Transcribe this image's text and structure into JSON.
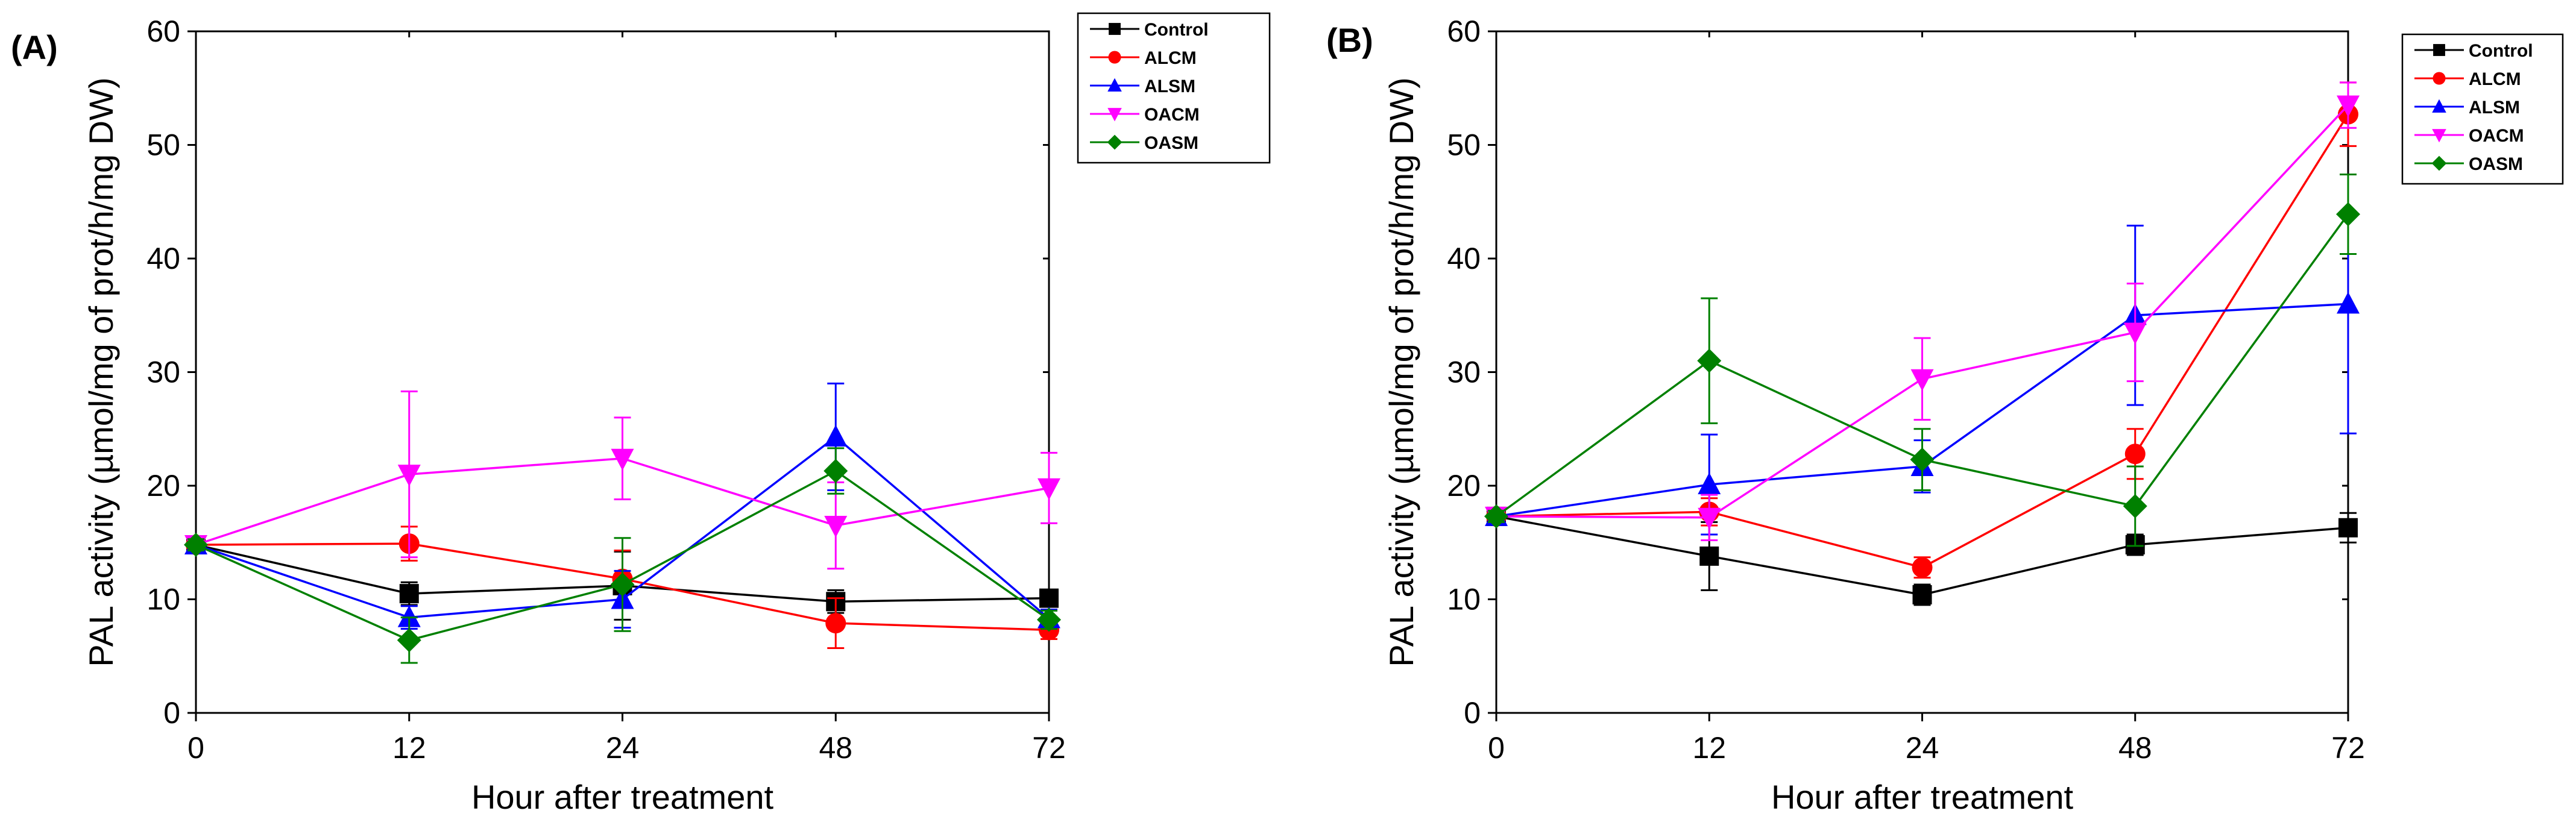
{
  "figure": {
    "panels": [
      "(A)",
      "(B)"
    ]
  },
  "chart_data": [
    {
      "panel": "(A)",
      "type": "line",
      "title": "",
      "xlabel": "Hour after treatment",
      "ylabel": "PAL activity (µmol/mg of prot/h/mg DW)",
      "x": [
        0,
        12,
        24,
        48,
        72
      ],
      "x_categories": [
        "0",
        "12",
        "24",
        "48",
        "72"
      ],
      "yticks": [
        0,
        10,
        20,
        30,
        40,
        50,
        60
      ],
      "ylim": [
        0,
        60
      ],
      "legend_position": "top-right",
      "series": [
        {
          "name": "Control",
          "color": "#000000",
          "marker": "square",
          "values": [
            14.8,
            10.5,
            11.2,
            9.8,
            10.1
          ],
          "errors": [
            0.5,
            1.0,
            3.0,
            1.0,
            0.5
          ]
        },
        {
          "name": "ALCM",
          "color": "#ff0000",
          "marker": "circle",
          "values": [
            14.8,
            14.9,
            11.8,
            7.9,
            7.3
          ],
          "errors": [
            0.5,
            1.5,
            2.5,
            2.2,
            0.8
          ]
        },
        {
          "name": "ALSM",
          "color": "#0000ff",
          "marker": "triangle-up",
          "values": [
            14.8,
            8.4,
            10.0,
            24.3,
            8.3
          ],
          "errors": [
            0.5,
            1.0,
            2.5,
            4.7,
            0.8
          ]
        },
        {
          "name": "OACM",
          "color": "#ff00ff",
          "marker": "triangle-down",
          "values": [
            14.8,
            21.0,
            22.4,
            16.5,
            19.8
          ],
          "errors": [
            0.5,
            7.3,
            3.6,
            3.8,
            3.1
          ]
        },
        {
          "name": "OASM",
          "color": "#008000",
          "marker": "diamond",
          "values": [
            14.8,
            6.4,
            11.3,
            21.3,
            8.2
          ],
          "errors": [
            0.5,
            2.0,
            4.1,
            2.0,
            0.8
          ]
        }
      ]
    },
    {
      "panel": "(B)",
      "type": "line",
      "title": "",
      "xlabel": "Hour after treatment",
      "ylabel": "PAL activity (µmol/mg of prot/h/mg DW)",
      "x": [
        0,
        12,
        24,
        48,
        72
      ],
      "x_categories": [
        "0",
        "12",
        "24",
        "48",
        "72"
      ],
      "yticks": [
        0,
        10,
        20,
        30,
        40,
        50,
        60
      ],
      "ylim": [
        0,
        60
      ],
      "legend_position": "top-right",
      "series": [
        {
          "name": "Control",
          "color": "#000000",
          "marker": "square",
          "values": [
            17.3,
            13.8,
            10.4,
            14.8,
            16.3
          ],
          "errors": [
            0.5,
            3.0,
            0.9,
            0.9,
            1.3
          ]
        },
        {
          "name": "ALCM",
          "color": "#ff0000",
          "marker": "circle",
          "values": [
            17.3,
            17.7,
            12.8,
            22.8,
            52.7
          ],
          "errors": [
            0.5,
            1.2,
            0.9,
            2.2,
            2.8
          ]
        },
        {
          "name": "ALSM",
          "color": "#0000ff",
          "marker": "triangle-up",
          "values": [
            17.3,
            20.1,
            21.7,
            35.0,
            36.0
          ],
          "errors": [
            0.5,
            4.4,
            2.3,
            7.9,
            11.4
          ]
        },
        {
          "name": "OACM",
          "color": "#ff00ff",
          "marker": "triangle-down",
          "values": [
            17.3,
            17.2,
            29.4,
            33.5,
            53.5
          ],
          "errors": [
            0.5,
            2.0,
            3.6,
            4.3,
            2.0
          ]
        },
        {
          "name": "OASM",
          "color": "#008000",
          "marker": "diamond",
          "values": [
            17.3,
            31.0,
            22.3,
            18.2,
            43.9
          ],
          "errors": [
            0.5,
            5.5,
            2.7,
            3.5,
            3.5
          ]
        }
      ]
    }
  ]
}
